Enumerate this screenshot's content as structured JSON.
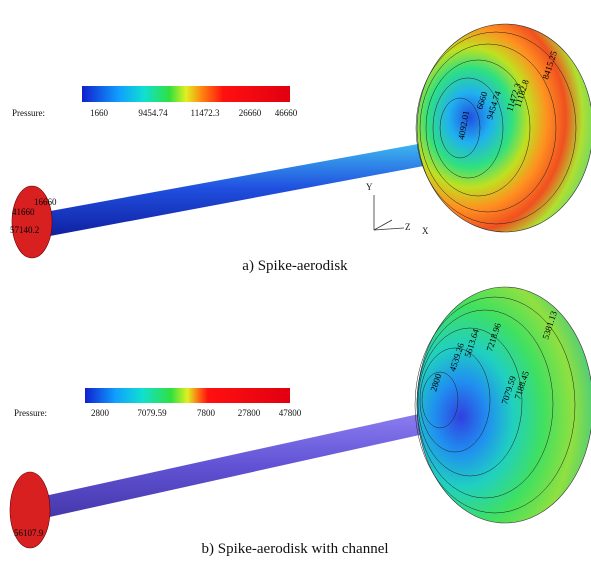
{
  "panels": [
    {
      "colorbar": {
        "label": "Pressure:",
        "ticks": [
          "1660",
          "9454.74",
          "11472.3",
          "26660",
          "46660"
        ]
      },
      "contour_labels": [
        "8415.25",
        "11182.8",
        "11472.3",
        "9454.74",
        "6660",
        "4092.01",
        "16660",
        "41660",
        "57140.2"
      ],
      "axes": {
        "y": "Y",
        "z": "Z",
        "x": "X"
      },
      "caption": "a) Spike-aerodisk"
    },
    {
      "colorbar": {
        "label": "Pressure:",
        "ticks": [
          "2800",
          "7079.59",
          "7800",
          "27800",
          "47800"
        ]
      },
      "contour_labels": [
        "5381.13",
        "7218.96",
        "5613.64",
        "4539.26",
        "2800",
        "7188.45",
        "7079.59",
        "56107.9"
      ],
      "caption": "b) Spike-aerodisk with channel"
    }
  ]
}
